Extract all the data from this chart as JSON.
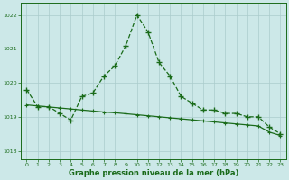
{
  "line1_x": [
    0,
    1,
    2,
    3,
    4,
    5,
    6,
    7,
    8,
    9,
    10,
    11,
    12,
    13,
    14,
    15,
    16,
    17,
    18,
    19,
    20,
    21,
    22,
    23
  ],
  "line1_y": [
    1019.8,
    1019.3,
    1019.3,
    1019.1,
    1018.9,
    1019.6,
    1019.7,
    1020.2,
    1020.5,
    1021.1,
    1022.0,
    1021.5,
    1020.6,
    1020.2,
    1019.6,
    1019.4,
    1019.2,
    1019.2,
    1019.1,
    1019.1,
    1019.0,
    1019.0,
    1018.7,
    1018.5
  ],
  "flat_line_x": [
    0,
    1,
    2,
    3,
    4,
    5,
    6,
    7,
    8,
    9,
    10,
    11,
    12,
    13,
    14,
    15,
    16,
    17,
    18,
    19,
    20,
    21,
    22,
    23
  ],
  "flat_line_y": [
    1019.35,
    1019.32,
    1019.29,
    1019.26,
    1019.23,
    1019.2,
    1019.17,
    1019.14,
    1019.12,
    1019.09,
    1019.06,
    1019.03,
    1019.0,
    1018.97,
    1018.94,
    1018.91,
    1018.88,
    1018.85,
    1018.82,
    1018.79,
    1018.76,
    1018.73,
    1018.55,
    1018.45
  ],
  "line_color": "#1a6b1a",
  "bg_color": "#cce8e8",
  "grid_color": "#aacccc",
  "xlabel": "Graphe pression niveau de la mer (hPa)",
  "ylim": [
    1017.75,
    1022.35
  ],
  "xlim": [
    -0.5,
    23.5
  ],
  "yticks": [
    1018,
    1019,
    1020,
    1021,
    1022
  ],
  "xticks": [
    0,
    1,
    2,
    3,
    4,
    5,
    6,
    7,
    8,
    9,
    10,
    11,
    12,
    13,
    14,
    15,
    16,
    17,
    18,
    19,
    20,
    21,
    22,
    23
  ],
  "tick_fontsize": 4.5,
  "xlabel_fontsize": 6.0
}
